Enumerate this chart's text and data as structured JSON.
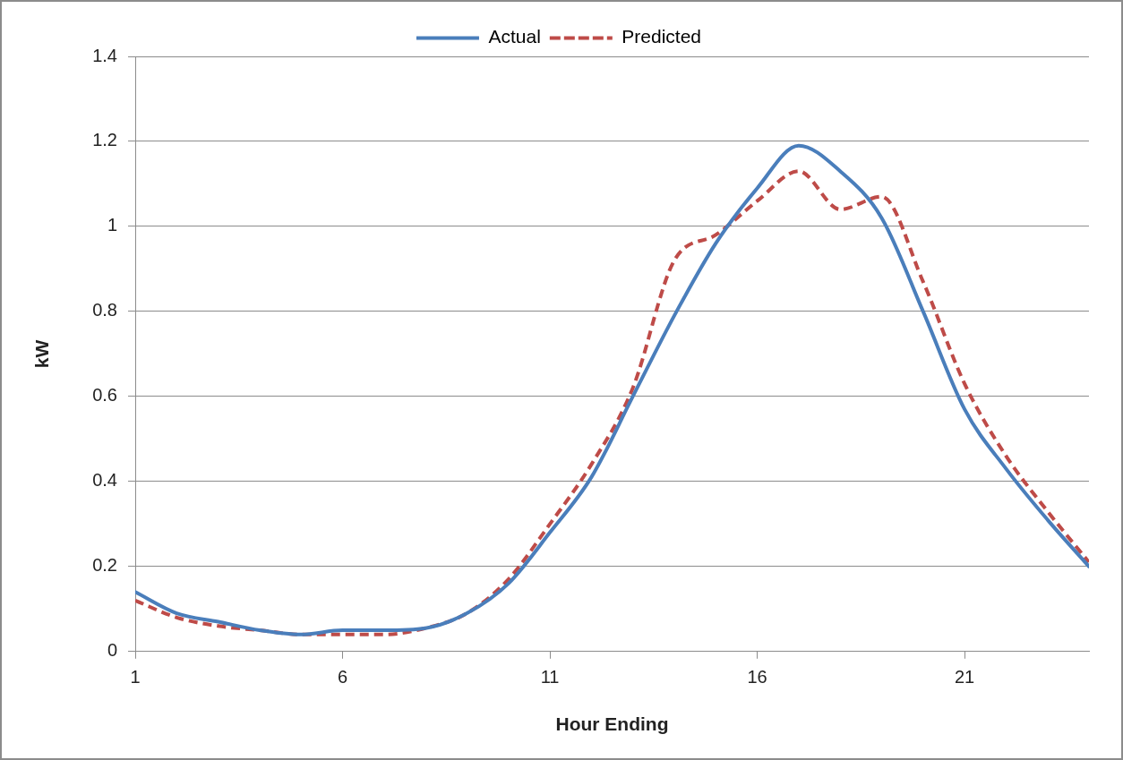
{
  "chart_data": {
    "type": "line",
    "xlabel": "Hour Ending",
    "ylabel": "kW",
    "x": [
      1,
      2,
      3,
      4,
      5,
      6,
      7,
      8,
      9,
      10,
      11,
      12,
      13,
      14,
      15,
      16,
      17,
      18,
      19,
      20,
      21,
      22,
      23,
      24
    ],
    "series": [
      {
        "name": "Actual",
        "color": "#4a7ebb",
        "line_style": "solid",
        "values": [
          0.14,
          0.09,
          0.07,
          0.05,
          0.04,
          0.05,
          0.05,
          0.055,
          0.09,
          0.16,
          0.28,
          0.41,
          0.6,
          0.79,
          0.96,
          1.09,
          1.19,
          1.13,
          1.02,
          0.8,
          0.57,
          0.43,
          0.31,
          0.2
        ]
      },
      {
        "name": "Predicted",
        "color": "#be4b48",
        "line_style": "dashed",
        "values": [
          0.12,
          0.08,
          0.06,
          0.05,
          0.04,
          0.04,
          0.04,
          0.055,
          0.09,
          0.17,
          0.3,
          0.44,
          0.62,
          0.92,
          0.98,
          1.06,
          1.13,
          1.04,
          1.07,
          0.87,
          0.63,
          0.46,
          0.33,
          0.21
        ]
      }
    ],
    "xlim": [
      1,
      24
    ],
    "xticks": [
      1,
      6,
      11,
      16,
      21
    ],
    "ylim": [
      0,
      1.4
    ],
    "yticks": [
      0,
      0.2,
      0.4,
      0.6,
      0.8,
      1,
      1.2,
      1.4
    ],
    "grid": "y",
    "legend": "top",
    "marker": "none"
  }
}
